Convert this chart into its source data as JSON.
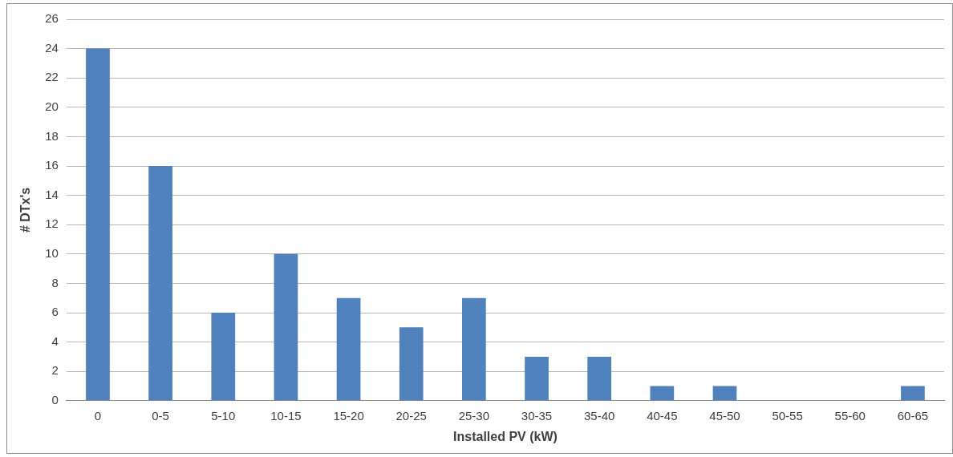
{
  "chart_data": {
    "type": "bar",
    "xlabel": "Installed PV (kW)",
    "ylabel": "# DTx's",
    "categories": [
      "0",
      "0-5",
      "5-10",
      "10-15",
      "15-20",
      "20-25",
      "25-30",
      "30-35",
      "35-40",
      "40-45",
      "45-50",
      "50-55",
      "55-60",
      "60-65"
    ],
    "values": [
      24,
      16,
      6,
      10,
      7,
      5,
      7,
      3,
      3,
      1,
      1,
      0,
      0,
      1
    ],
    "color": "#4f81bd",
    "ylim": [
      0,
      26
    ],
    "yticks": [
      0,
      2,
      4,
      6,
      8,
      10,
      12,
      14,
      16,
      18,
      20,
      22,
      24,
      26
    ],
    "grid": "y",
    "legend": false
  }
}
